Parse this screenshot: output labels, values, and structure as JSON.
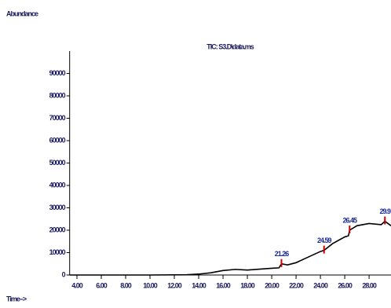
{
  "chart_data": {
    "type": "line",
    "title": "TIC: S3.D\\data.ms",
    "ylabel": "Abundance",
    "xlabel": "Time-->",
    "x": [
      3.4,
      10,
      13,
      14,
      15,
      16,
      17,
      18,
      19,
      20,
      20.6,
      20.8,
      21.3,
      22,
      23,
      24,
      24.3,
      25,
      26,
      26.3,
      26.4,
      27,
      28,
      29,
      29.3,
      29.8
    ],
    "series": [
      {
        "name": "TIC",
        "color": "#000000",
        "values": [
          0,
          0,
          100,
          400,
          1000,
          2000,
          2500,
          2200,
          2600,
          3000,
          3200,
          5000,
          4500,
          5500,
          8000,
          10500,
          11000,
          14000,
          17000,
          17500,
          20000,
          22000,
          23000,
          22500,
          24000,
          22000
        ]
      }
    ],
    "annotations": [
      {
        "text": "21.26",
        "x": 20.8,
        "y": 5000
      },
      {
        "text": "24.59",
        "x": 24.3,
        "y": 11000
      },
      {
        "text": "26.45",
        "x": 26.4,
        "y": 20000
      },
      {
        "text": "29.9",
        "x": 29.3,
        "y": 24000
      }
    ],
    "xlim": [
      3.4,
      29.8
    ],
    "ylim": [
      0,
      100000
    ],
    "xticks": [
      {
        "value": 4,
        "label": "4.00"
      },
      {
        "value": 6,
        "label": "6.00"
      },
      {
        "value": 8,
        "label": "8.00"
      },
      {
        "value": 10,
        "label": "10.00"
      },
      {
        "value": 12,
        "label": "12.00"
      },
      {
        "value": 14,
        "label": "14.00"
      },
      {
        "value": 16,
        "label": "16.00"
      },
      {
        "value": 18,
        "label": "18.00"
      },
      {
        "value": 20,
        "label": "20.00"
      },
      {
        "value": 22,
        "label": "22.00"
      },
      {
        "value": 24,
        "label": "24.00"
      },
      {
        "value": 26,
        "label": "26.00"
      },
      {
        "value": 28,
        "label": "28.00"
      }
    ],
    "yticks": [
      0,
      10000,
      20000,
      30000,
      40000,
      50000,
      60000,
      70000,
      80000,
      90000
    ],
    "marker_color": "#cc0000",
    "annotation_color": "#1a2a9a"
  }
}
